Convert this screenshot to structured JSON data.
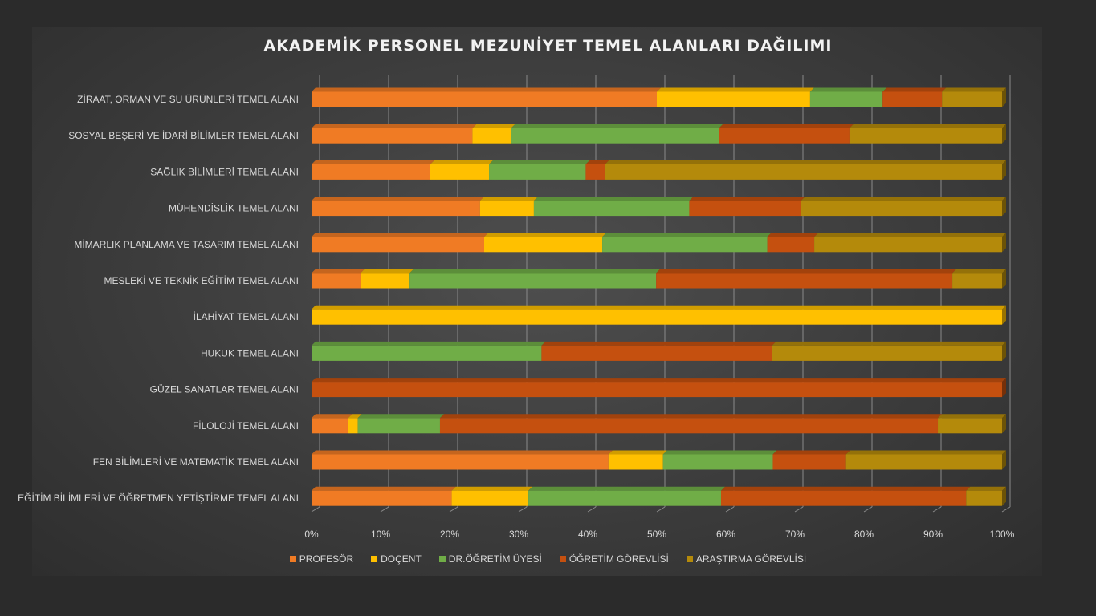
{
  "chart_data": {
    "type": "bar",
    "orientation": "horizontal",
    "stacked": "percent",
    "title": "AKADEMİK PERSONEL MEZUNİYET TEMEL ALANLARI DAĞILIMI",
    "categories": [
      "ZİRAAT, ORMAN VE SU ÜRÜNLERİ TEMEL ALANI",
      "SOSYAL BEŞERİ VE İDARİ BİLİMLER TEMEL ALANI",
      "SAĞLIK BİLİMLERİ TEMEL ALANI",
      "MÜHENDİSLİK TEMEL ALANI",
      "MİMARLIK PLANLAMA VE TASARIM TEMEL ALANI",
      "MESLEKİ VE TEKNİK EĞİTİM TEMEL ALANI",
      "İLAHİYAT TEMEL ALANI",
      "HUKUK TEMEL ALANI",
      "GÜZEL SANATLAR TEMEL ALANI",
      "FİLOLOJİ TEMEL ALANI",
      "FEN BİLİMLERİ VE MATEMATİK TEMEL ALANI",
      "EĞİTİM BİLİMLERİ VE ÖĞRETMEN YETİŞTİRME TEMEL ALANI"
    ],
    "series": [
      {
        "name": "PROFESÖR",
        "color": "#f07b24",
        "values": [
          50,
          23.3,
          17.2,
          24.4,
          25,
          7.1,
          0,
          0,
          0,
          5.3,
          43,
          20.3
        ]
      },
      {
        "name": "DOÇENT",
        "color": "#ffc000",
        "values": [
          22.2,
          5.6,
          8.5,
          7.8,
          17.1,
          7.1,
          100,
          0,
          0,
          1.4,
          7.9,
          11.1
        ]
      },
      {
        "name": "DR.ÖĞRETİM ÜYESİ",
        "color": "#70ad47",
        "values": [
          10.5,
          30.1,
          14,
          22.5,
          23.9,
          35.7,
          0,
          33.3,
          0,
          11.9,
          15.9,
          27.9
        ]
      },
      {
        "name": "ÖĞRETİM GÖREVLİSİ",
        "color": "#c5500f",
        "values": [
          8.6,
          18.9,
          2.8,
          16.2,
          6.8,
          42.9,
          0,
          33.4,
          100,
          72.1,
          10.6,
          35.5
        ]
      },
      {
        "name": "ARAŞTIRMA GÖREVLİSİ",
        "color": "#b48a0b",
        "values": [
          8.7,
          22.1,
          57.5,
          29.1,
          27.2,
          7.2,
          0,
          33.3,
          0,
          9.3,
          22.6,
          5.2
        ]
      }
    ],
    "xlim": [
      0,
      100
    ],
    "x_ticks": [
      "0%",
      "10%",
      "20%",
      "30%",
      "40%",
      "50%",
      "60%",
      "70%",
      "80%",
      "90%",
      "100%"
    ],
    "grid": true,
    "legend_position": "bottom"
  }
}
